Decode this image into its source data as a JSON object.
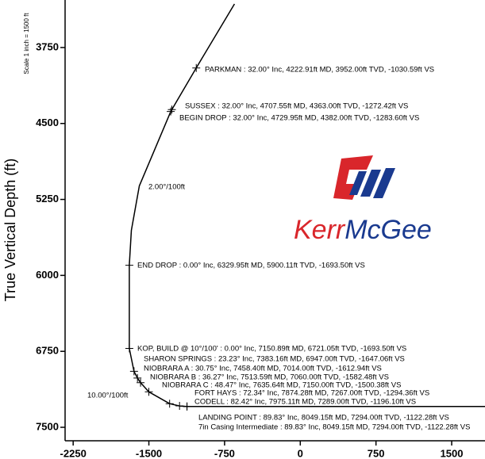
{
  "chart_data": {
    "type": "line",
    "ylabel": "True Vertical Depth (ft)",
    "scale_note": "Scale 1 inch = 1500 ft",
    "logo": {
      "part1": "Kerr",
      "part2": "McGee"
    },
    "xlim": [
      -2330,
      1830
    ],
    "ylim": [
      3320,
      7633
    ],
    "y_inverted": true,
    "xticks": [
      -2250,
      -1500,
      -750,
      0,
      750,
      1500
    ],
    "yticks": [
      3750,
      4500,
      5250,
      6000,
      6750,
      7500
    ],
    "color": "#000000",
    "x": [
      -652,
      -1030.59,
      -1272.42,
      -1283.6,
      -1460,
      -1595,
      -1673,
      -1693.5,
      -1693.5,
      -1647.06,
      -1612.94,
      -1582.48,
      -1500.38,
      -1294.36,
      -1196.1,
      -1122.28,
      1830
    ],
    "values": [
      3320,
      3952,
      4363,
      4382,
      4800,
      5117,
      5555,
      5900.11,
      6721.05,
      6947,
      7014,
      7060,
      7150,
      7267,
      7289,
      7294,
      7294
    ],
    "annotations": [
      {
        "text": "PARKMAN : 32.00° Inc, 4222.91ft MD, 3952.00ft TVD, -1030.59ft VS",
        "x": -1030.59,
        "y": 3952
      },
      {
        "text": "SUSSEX : 32.00° Inc, 4707.55ft MD, 4363.00ft TVD, -1272.42ft VS",
        "x": -1272.42,
        "y": 4363
      },
      {
        "text": "BEGIN DROP : 32.00° Inc, 4729.95ft MD, 4382.00ft TVD, -1283.60ft VS",
        "x": -1283.6,
        "y": 4382
      },
      {
        "text": "END DROP : 0.00° Inc, 6329.95ft MD, 5900.11ft TVD, -1693.50ft VS",
        "x": -1693.5,
        "y": 5900.11
      },
      {
        "text": "KOP, BUILD @ 10°/100' : 0.00° Inc, 7150.89ft MD, 6721.05ft TVD, -1693.50ft VS",
        "x": -1693.5,
        "y": 6721.05
      },
      {
        "text": "SHARON SPRINGS : 23.23° Inc, 7383.16ft MD, 6947.00ft TVD, -1647.06ft VS",
        "x": -1647.06,
        "y": 6947
      },
      {
        "text": "NIOBRARA A : 30.75° Inc, 7458.40ft MD, 7014.00ft TVD, -1612.94ft VS",
        "x": -1612.94,
        "y": 7014
      },
      {
        "text": "NIOBRARA B : 36.27° Inc, 7513.59ft MD, 7060.00ft TVD, -1582.48ft VS",
        "x": -1582.48,
        "y": 7060
      },
      {
        "text": "NIOBRARA C : 48.47° Inc, 7635.64ft MD, 7150.00ft TVD, -1500.38ft VS",
        "x": -1500.38,
        "y": 7150
      },
      {
        "text": "FORT HAYS : 72.34° Inc, 7874.28ft MD, 7267.00ft TVD, -1294.36ft VS",
        "x": -1294.36,
        "y": 7267
      },
      {
        "text": "CODELL : 82.42° Inc, 7975.11ft MD, 7289.00ft TVD, -1196.10ft VS",
        "x": -1196.1,
        "y": 7289
      },
      {
        "text": "LANDING POINT : 89.83° Inc, 8049.15ft MD, 7294.00ft TVD, -1122.28ft VS",
        "x": -1122.28,
        "y": 7294
      },
      {
        "text": "7in Casing Intermediate : 89.83° Inc, 8049.15ft MD, 7294.00ft TVD, -1122.28ft VS",
        "x": -1122.28,
        "y": 7294
      }
    ],
    "rate_labels": [
      "2.00°/100ft",
      "10.00°/100ft"
    ]
  }
}
